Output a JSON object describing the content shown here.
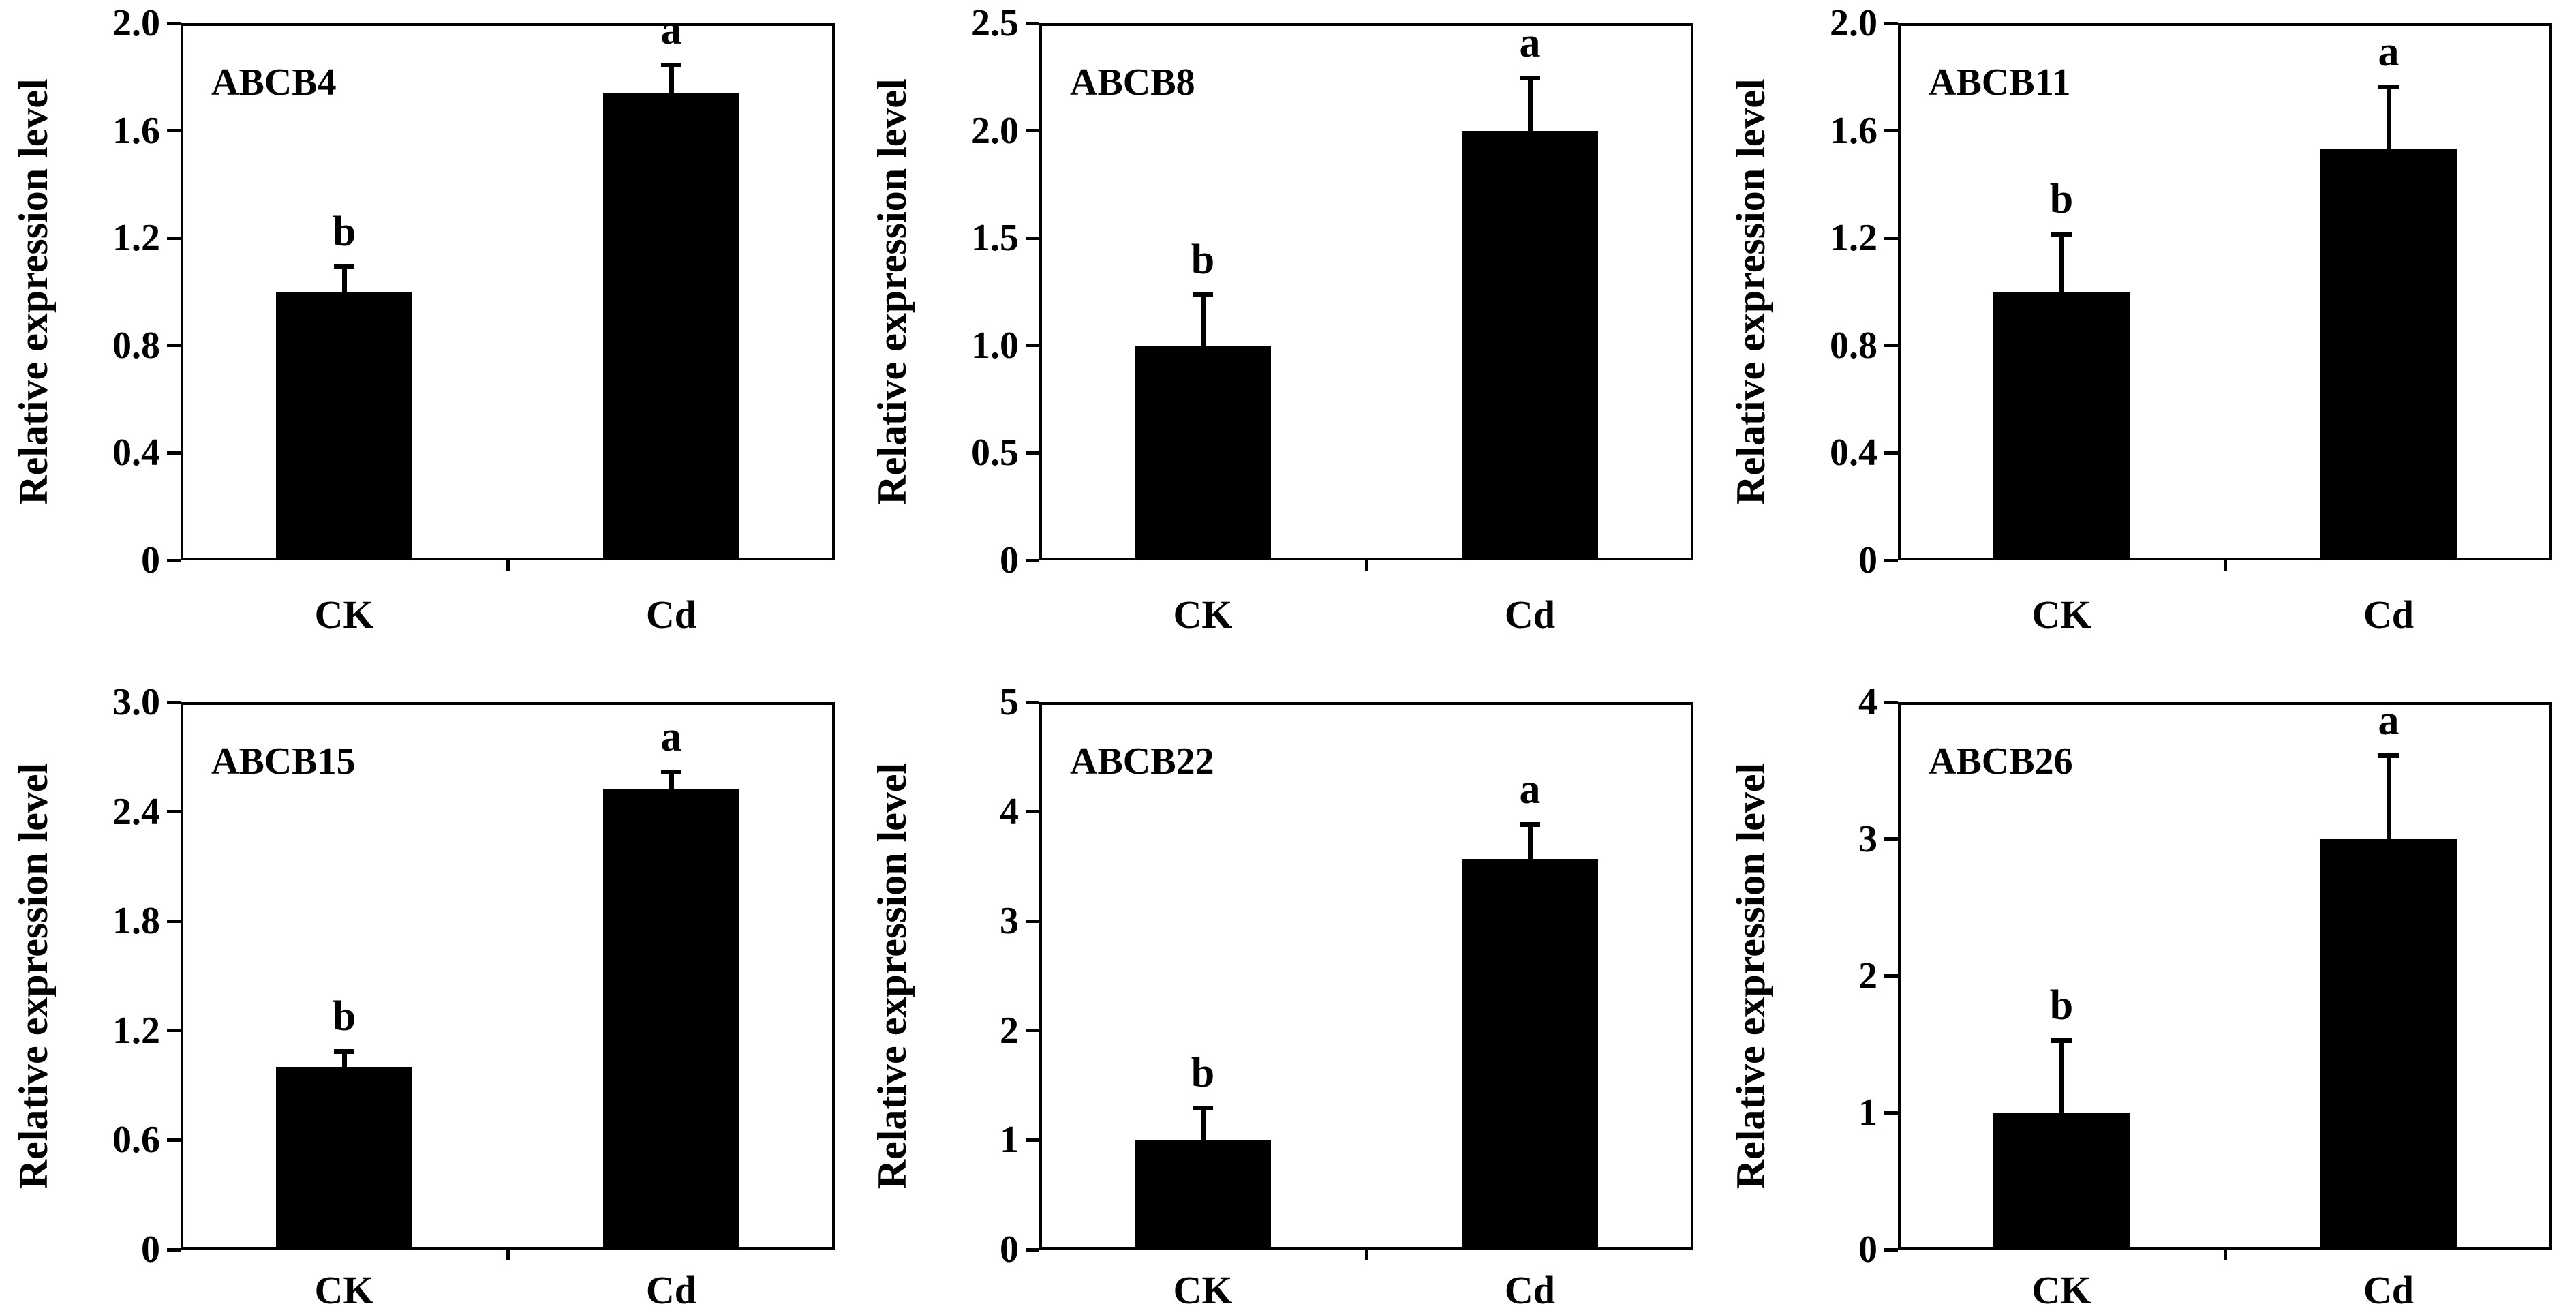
{
  "figure": {
    "background": "#ffffff",
    "bar_color": "#000000",
    "axis_color": "#000000",
    "text_color": "#000000",
    "rows": 2,
    "cols": 3
  },
  "chart_data": [
    {
      "type": "bar",
      "title": "ABCB4",
      "ylabel": "Relative expression level",
      "categories": [
        "CK",
        "Cd"
      ],
      "values": [
        1.0,
        1.74
      ],
      "errors": [
        0.09,
        0.1
      ],
      "sig_letters": [
        "b",
        "a"
      ],
      "ylim": [
        0,
        2.0
      ],
      "ytick_values": [
        0,
        0.4,
        0.8,
        1.2,
        1.6,
        2.0
      ],
      "ytick_labels": [
        "0",
        "0.4",
        "0.8",
        "1.2",
        "1.6",
        "2.0"
      ],
      "grid": false,
      "legend": "none"
    },
    {
      "type": "bar",
      "title": "ABCB8",
      "ylabel": "Relative expression level",
      "categories": [
        "CK",
        "Cd"
      ],
      "values": [
        1.0,
        2.0
      ],
      "errors": [
        0.23,
        0.24
      ],
      "sig_letters": [
        "b",
        "a"
      ],
      "ylim": [
        0,
        2.5
      ],
      "ytick_values": [
        0,
        0.5,
        1.0,
        1.5,
        2.0,
        2.5
      ],
      "ytick_labels": [
        "0",
        "0.5",
        "1.0",
        "1.5",
        "2.0",
        "2.5"
      ],
      "grid": false,
      "legend": "none"
    },
    {
      "type": "bar",
      "title": "ABCB11",
      "ylabel": "Relative expression level",
      "categories": [
        "CK",
        "Cd"
      ],
      "values": [
        1.0,
        1.53
      ],
      "errors": [
        0.21,
        0.23
      ],
      "sig_letters": [
        "b",
        "a"
      ],
      "ylim": [
        0,
        2.0
      ],
      "ytick_values": [
        0,
        0.4,
        0.8,
        1.2,
        1.6,
        2.0
      ],
      "ytick_labels": [
        "0",
        "0.4",
        "0.8",
        "1.2",
        "1.6",
        "2.0"
      ],
      "grid": false,
      "legend": "none"
    },
    {
      "type": "bar",
      "title": "ABCB15",
      "ylabel": "Relative expression level",
      "categories": [
        "CK",
        "Cd"
      ],
      "values": [
        1.0,
        2.52
      ],
      "errors": [
        0.08,
        0.09
      ],
      "sig_letters": [
        "b",
        "a"
      ],
      "ylim": [
        0,
        3.0
      ],
      "ytick_values": [
        0,
        0.6,
        1.2,
        1.8,
        2.4,
        3.0
      ],
      "ytick_labels": [
        "0",
        "0.6",
        "1.2",
        "1.8",
        "2.4",
        "3.0"
      ],
      "grid": false,
      "legend": "none"
    },
    {
      "type": "bar",
      "title": "ABCB22",
      "ylabel": "Relative expression level",
      "categories": [
        "CK",
        "Cd"
      ],
      "values": [
        1.0,
        3.57
      ],
      "errors": [
        0.28,
        0.3
      ],
      "sig_letters": [
        "b",
        "a"
      ],
      "ylim": [
        0,
        5
      ],
      "ytick_values": [
        0,
        1,
        2,
        3,
        4,
        5
      ],
      "ytick_labels": [
        "0",
        "1",
        "2",
        "3",
        "4",
        "5"
      ],
      "grid": false,
      "legend": "none"
    },
    {
      "type": "bar",
      "title": "ABCB26",
      "ylabel": "Relative expression level",
      "categories": [
        "CK",
        "Cd"
      ],
      "values": [
        1.0,
        3.0
      ],
      "errors": [
        0.52,
        0.6
      ],
      "sig_letters": [
        "b",
        "a"
      ],
      "ylim": [
        0,
        4
      ],
      "ytick_values": [
        0,
        1,
        2,
        3,
        4
      ],
      "ytick_labels": [
        "0",
        "1",
        "2",
        "3",
        "4"
      ],
      "grid": false,
      "legend": "none"
    }
  ]
}
